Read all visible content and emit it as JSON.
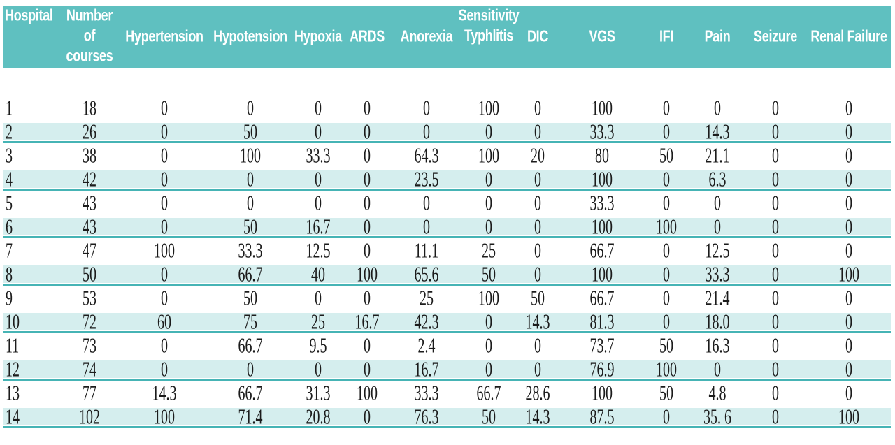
{
  "chart_data": {
    "type": "table",
    "group_header": {
      "label": "Sensitivity",
      "over": "Typhlitis"
    },
    "columns": [
      "Hospital",
      "Number of courses",
      "Hypertension",
      "Hypotension",
      "Hypoxia",
      "ARDS",
      "Anorexia",
      "Typhlitis",
      "DIC",
      "VGS",
      "IFI",
      "Pain",
      "Seizure",
      "Renal Failure"
    ],
    "rows": [
      [
        "1",
        "18",
        "0",
        "0",
        "0",
        "0",
        "0",
        "100",
        "0",
        "100",
        "0",
        "0",
        "0",
        "0"
      ],
      [
        "2",
        "26",
        "0",
        "50",
        "0",
        "0",
        "0",
        "0",
        "0",
        "33.3",
        "0",
        "14.3",
        "0",
        "0"
      ],
      [
        "3",
        "38",
        "0",
        "100",
        "33.3",
        "0",
        "64.3",
        "100",
        "20",
        "80",
        "50",
        "21.1",
        "0",
        "0"
      ],
      [
        "4",
        "42",
        "0",
        "0",
        "0",
        "0",
        "23.5",
        "0",
        "0",
        "100",
        "0",
        "6.3",
        "0",
        "0"
      ],
      [
        "5",
        "43",
        "0",
        "0",
        "0",
        "0",
        "0",
        "0",
        "0",
        "33.3",
        "0",
        "0",
        "0",
        "0"
      ],
      [
        "6",
        "43",
        "0",
        "50",
        "16.7",
        "0",
        "0",
        "0",
        "0",
        "100",
        "100",
        "0",
        "0",
        "0"
      ],
      [
        "7",
        "47",
        "100",
        "33.3",
        "12.5",
        "0",
        "11.1",
        "25",
        "0",
        "66.7",
        "0",
        "12.5",
        "0",
        "0"
      ],
      [
        "8",
        "50",
        "0",
        "66.7",
        "40",
        "100",
        "65.6",
        "50",
        "0",
        "100",
        "0",
        "33.3",
        "0",
        "100"
      ],
      [
        "9",
        "53",
        "0",
        "50",
        "0",
        "0",
        "25",
        "100",
        "50",
        "66.7",
        "0",
        "21.4",
        "0",
        "0"
      ],
      [
        "10",
        "72",
        "60",
        "75",
        "25",
        "16.7",
        "42.3",
        "0",
        "14.3",
        "81.3",
        "0",
        "18.0",
        "0",
        "0"
      ],
      [
        "11",
        "73",
        "0",
        "66.7",
        "9.5",
        "0",
        "2.4",
        "0",
        "0",
        "73.7",
        "50",
        "16.3",
        "0",
        "0"
      ],
      [
        "12",
        "74",
        "0",
        "0",
        "0",
        "0",
        "16.7",
        "0",
        "0",
        "76.9",
        "100",
        "0",
        "0",
        "0"
      ],
      [
        "13",
        "77",
        "14.3",
        "66.7",
        "31.3",
        "100",
        "33.3",
        "66.7",
        "28.6",
        "100",
        "50",
        "4.8",
        "0",
        "0"
      ],
      [
        "14",
        "102",
        "100",
        "71.4",
        "20.8",
        "0",
        "76.3",
        "50",
        "14.3",
        "87.5",
        "0",
        "35. 6",
        "0",
        "100"
      ]
    ]
  },
  "header_display": {
    "courses_lines": [
      "Number",
      "of",
      "courses"
    ]
  },
  "colors": {
    "header_bg": "#5fc0c0",
    "stripe_bg": "#d5eeee",
    "stripe_line": "#46b4b5",
    "header_text": "#ffffff",
    "body_text": "#1b1b1b"
  }
}
